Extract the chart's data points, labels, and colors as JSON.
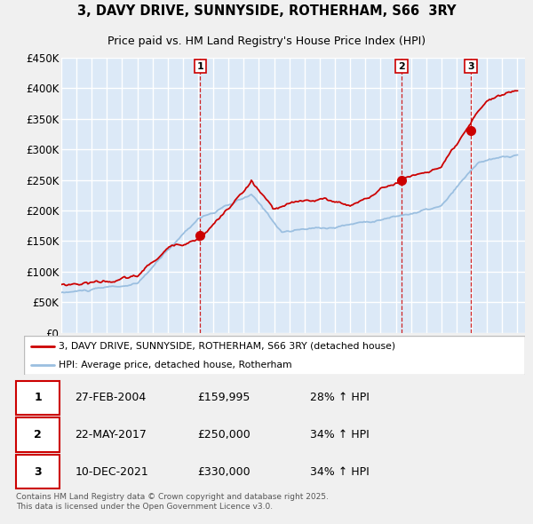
{
  "title": "3, DAVY DRIVE, SUNNYSIDE, ROTHERHAM, S66  3RY",
  "subtitle": "Price paid vs. HM Land Registry's House Price Index (HPI)",
  "ylim": [
    0,
    450000
  ],
  "yticks": [
    0,
    50000,
    100000,
    150000,
    200000,
    250000,
    300000,
    350000,
    400000,
    450000
  ],
  "ytick_labels": [
    "£0",
    "£50K",
    "£100K",
    "£150K",
    "£200K",
    "£250K",
    "£300K",
    "£350K",
    "£400K",
    "£450K"
  ],
  "background_color": "#dce9f7",
  "grid_color": "#ffffff",
  "red_color": "#cc0000",
  "blue_color": "#9bbfe0",
  "fig_bg": "#f0f0f0",
  "sale_points": [
    {
      "date_num": 2004.13,
      "price": 159995,
      "label": "1"
    },
    {
      "date_num": 2017.38,
      "price": 250000,
      "label": "2"
    },
    {
      "date_num": 2021.94,
      "price": 330000,
      "label": "3"
    }
  ],
  "sale_vlines": [
    2004.13,
    2017.38,
    2021.94
  ],
  "legend_label_red": "3, DAVY DRIVE, SUNNYSIDE, ROTHERHAM, S66 3RY (detached house)",
  "legend_label_blue": "HPI: Average price, detached house, Rotherham",
  "table_rows": [
    [
      "1",
      "27-FEB-2004",
      "£159,995",
      "28% ↑ HPI"
    ],
    [
      "2",
      "22-MAY-2017",
      "£250,000",
      "34% ↑ HPI"
    ],
    [
      "3",
      "10-DEC-2021",
      "£330,000",
      "34% ↑ HPI"
    ]
  ],
  "footnote": "Contains HM Land Registry data © Crown copyright and database right 2025.\nThis data is licensed under the Open Government Licence v3.0.",
  "title_fontsize": 10.5,
  "subtitle_fontsize": 9
}
